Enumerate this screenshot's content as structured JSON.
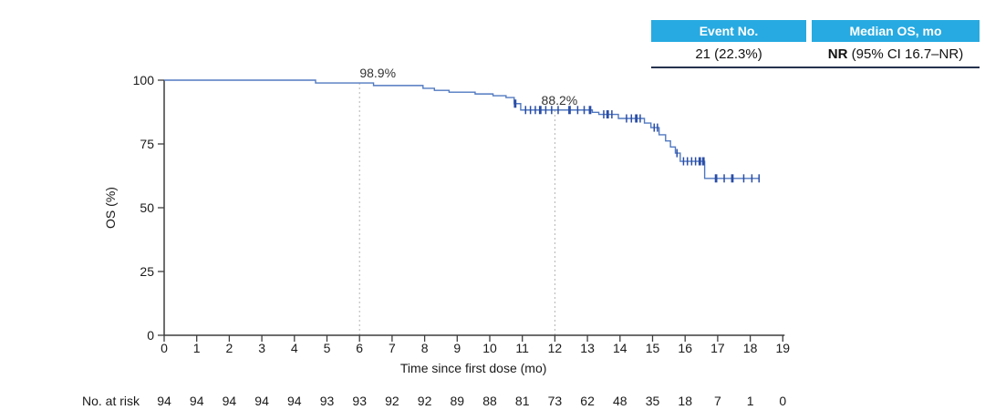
{
  "summary_table": {
    "headers": [
      "Event No.",
      "Median OS, mo"
    ],
    "event_value": "21 (22.3%)",
    "median_bold": "NR",
    "median_rest": " (95% CI 16.7–NR)",
    "header_bg": "#27aae1",
    "header_text_color": "#ffffff",
    "border_color": "#26324e"
  },
  "chart_data": {
    "type": "line",
    "subtype": "kaplan_meier_step",
    "title": "",
    "xlabel": "Time since first dose (mo)",
    "ylabel": "OS (%)",
    "xlim": [
      0,
      19
    ],
    "ylim": [
      0,
      100
    ],
    "x_ticks": [
      0,
      1,
      2,
      3,
      4,
      5,
      6,
      7,
      8,
      9,
      10,
      11,
      12,
      13,
      14,
      15,
      16,
      17,
      18,
      19
    ],
    "y_ticks": [
      0,
      25,
      50,
      75,
      100
    ],
    "grid": false,
    "legend": "none",
    "line_color": "#5079c1",
    "censor_color": "#2a4da6",
    "landmark_line_color": "#b3b3b3",
    "axis_color": "#3d3d3d",
    "text_color": "#1a1a1a",
    "survival_steps": [
      [
        0,
        100
      ],
      [
        4.65,
        98.9
      ],
      [
        6.43,
        97.9
      ],
      [
        7.95,
        96.8
      ],
      [
        8.3,
        96.0
      ],
      [
        8.75,
        95.3
      ],
      [
        9.55,
        94.6
      ],
      [
        10.1,
        93.9
      ],
      [
        10.5,
        93.2
      ],
      [
        10.75,
        90.8
      ],
      [
        10.95,
        88.3
      ],
      [
        13.15,
        87.4
      ],
      [
        13.35,
        86.6
      ],
      [
        13.95,
        85.0
      ],
      [
        14.75,
        83.2
      ],
      [
        14.95,
        81.4
      ],
      [
        15.2,
        78.6
      ],
      [
        15.4,
        76.2
      ],
      [
        15.55,
        73.8
      ],
      [
        15.7,
        71.4
      ],
      [
        15.85,
        68.2
      ],
      [
        16.6,
        61.5
      ],
      [
        18.28,
        61.5
      ]
    ],
    "censor_marks": [
      [
        10.78,
        90.8,
        2
      ],
      [
        11.1,
        88.3,
        1
      ],
      [
        11.25,
        88.3,
        1
      ],
      [
        11.4,
        88.3,
        1
      ],
      [
        11.55,
        88.3,
        2
      ],
      [
        11.72,
        88.3,
        1
      ],
      [
        11.9,
        88.3,
        1
      ],
      [
        12.1,
        88.3,
        1
      ],
      [
        12.45,
        88.3,
        2
      ],
      [
        12.7,
        88.3,
        1
      ],
      [
        12.9,
        88.3,
        1
      ],
      [
        13.08,
        88.3,
        2
      ],
      [
        13.5,
        86.6,
        1
      ],
      [
        13.62,
        86.6,
        2
      ],
      [
        13.75,
        86.6,
        1
      ],
      [
        14.2,
        85.0,
        1
      ],
      [
        14.35,
        85.0,
        1
      ],
      [
        14.5,
        85.0,
        2
      ],
      [
        14.62,
        85.0,
        1
      ],
      [
        15.05,
        81.4,
        1
      ],
      [
        15.15,
        81.4,
        1
      ],
      [
        15.75,
        71.4,
        1
      ],
      [
        15.95,
        68.2,
        1
      ],
      [
        16.07,
        68.2,
        1
      ],
      [
        16.2,
        68.2,
        1
      ],
      [
        16.32,
        68.2,
        1
      ],
      [
        16.45,
        68.2,
        2
      ],
      [
        16.56,
        68.2,
        2
      ],
      [
        16.95,
        61.5,
        2
      ],
      [
        17.2,
        61.5,
        1
      ],
      [
        17.45,
        61.5,
        2
      ],
      [
        17.8,
        61.5,
        1
      ],
      [
        18.05,
        61.5,
        1
      ],
      [
        18.27,
        61.5,
        1
      ]
    ],
    "landmarks": [
      {
        "time_mo": 6,
        "os_pct": 98.9,
        "label": "98.9%",
        "label_dx": 20
      },
      {
        "time_mo": 12,
        "os_pct": 88.2,
        "label": "88.2%",
        "label_dx": 5
      }
    ],
    "risk_row": {
      "label": "No. at risk",
      "values": [
        94,
        94,
        94,
        94,
        94,
        93,
        93,
        92,
        92,
        89,
        88,
        81,
        73,
        62,
        48,
        35,
        18,
        7,
        1,
        0
      ]
    }
  }
}
